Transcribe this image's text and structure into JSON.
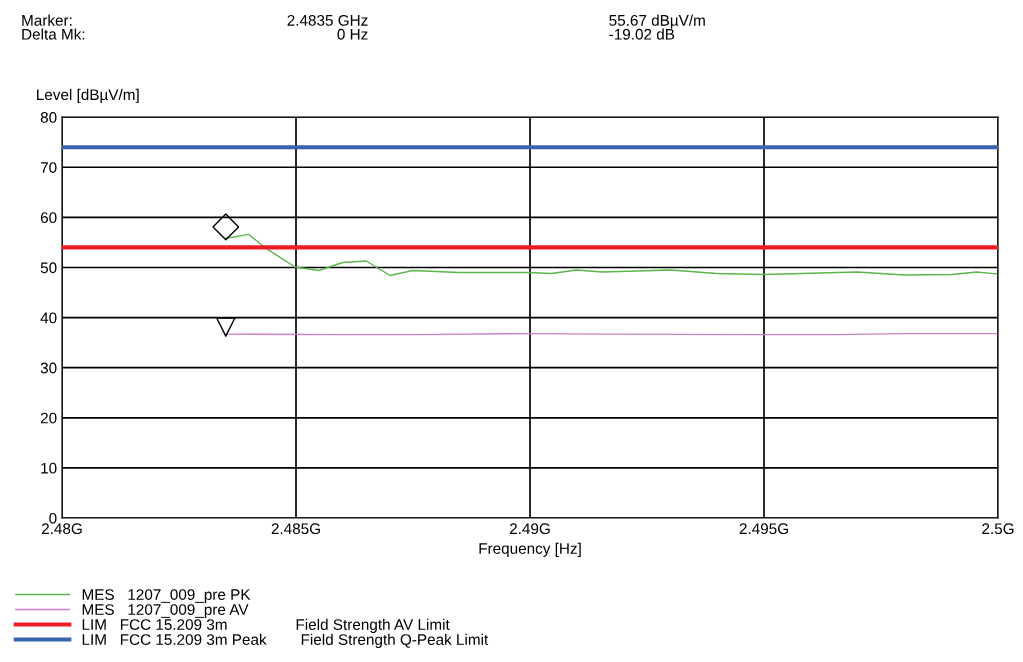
{
  "chart_data": {
    "type": "line",
    "ylabel": "Level [dBµV/m]",
    "xlabel": "Frequency [Hz]",
    "annotations": [
      "Marker:",
      "2.4835 GHz",
      "55.67 dBµV/m",
      "Delta Mk:",
      "0 Hz",
      "-19.02 dB"
    ],
    "xlim": [
      2.48,
      2.5
    ],
    "xticks": [
      {
        "value": 2.48,
        "label": "2.48G"
      },
      {
        "value": 2.485,
        "label": "2.485G"
      },
      {
        "value": 2.49,
        "label": "2.49G"
      },
      {
        "value": 2.495,
        "label": "2.495G"
      },
      {
        "value": 2.5,
        "label": "2.5G"
      }
    ],
    "ylim": [
      0,
      80
    ],
    "yticks": [
      0,
      10,
      20,
      30,
      40,
      50,
      60,
      70,
      80
    ],
    "grid": true,
    "legend": "bottom",
    "series": [
      {
        "name": "MES   1207_009_pre PK",
        "color": "#5ab54a",
        "marker": "none",
        "x": [
          2.4835,
          2.48399,
          2.48436,
          2.48498,
          2.48549,
          2.486,
          2.4865,
          2.48701,
          2.4875,
          2.48848,
          2.48994,
          2.49046,
          2.49099,
          2.49154,
          2.49301,
          2.49399,
          2.495,
          2.49699,
          2.498,
          2.49902,
          2.49954,
          2.49999
        ],
        "values": [
          55.8,
          56.6,
          53.8,
          50.1,
          49.4,
          51.0,
          51.3,
          48.4,
          49.4,
          49.0,
          49.0,
          48.8,
          49.5,
          49.1,
          49.5,
          48.8,
          48.6,
          49.1,
          48.5,
          48.6,
          49.1,
          48.7
        ]
      },
      {
        "name": "MES   1207_009_pre AV",
        "color": "#d080c8",
        "marker": "none",
        "x": [
          2.4835,
          2.486,
          2.4875,
          2.49,
          2.4915,
          2.495,
          2.4965,
          2.498,
          2.5
        ],
        "values": [
          36.7,
          36.6,
          36.6,
          36.8,
          36.7,
          36.6,
          36.6,
          36.8,
          36.8
        ]
      },
      {
        "type": "scatter",
        "color": "#000000",
        "marker": "diamond",
        "x": [
          2.4835
        ],
        "values": [
          58.1
        ]
      },
      {
        "type": "scatter",
        "color": "#000000",
        "marker": "triangle",
        "x": [
          2.4835
        ],
        "values": [
          38.1
        ]
      }
    ],
    "ref_lines": [
      {
        "axis": "y",
        "value": 54,
        "label": "LIM   FCC 15.209 3m                Field Strength AV Limit",
        "color": "#ee1c25"
      },
      {
        "axis": "y",
        "value": 74,
        "label": "LIM   FCC 15.209 3m Peak        Field Strength Q-Peak Limit",
        "color": "#3a63ad"
      }
    ]
  }
}
